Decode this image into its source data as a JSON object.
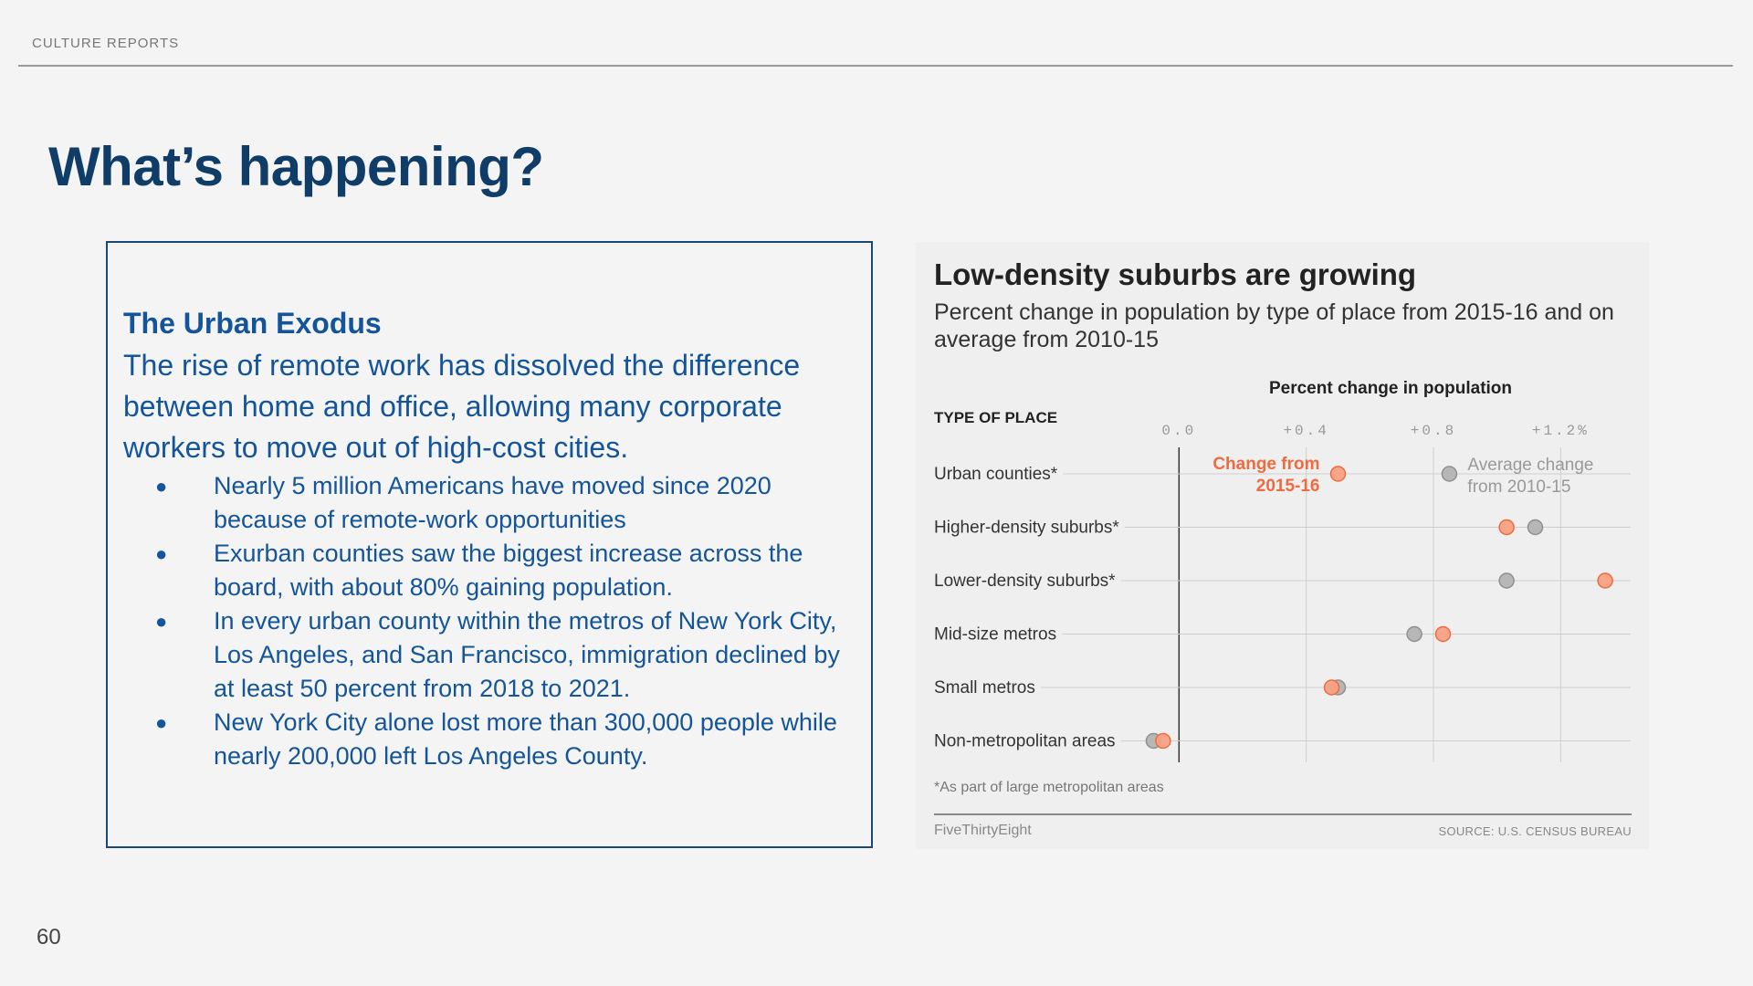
{
  "header": {
    "section_label": "CULTURE REPORTS"
  },
  "slide": {
    "title": "What’s happening?",
    "page_number": "60"
  },
  "text_box": {
    "heading": "The Urban Exodus",
    "lead": "The rise of remote work has dissolved the difference between home and office, allowing many corporate workers to move out of high-cost cities.",
    "bullets": [
      "Nearly 5 million Americans have moved since 2020 because of remote-work opportunities",
      "Exurban counties saw the biggest increase across the board, with about 80% gaining population.",
      "In every urban county within the metros of New York City, Los Angeles, and San Francisco, immigration declined by at least 50 percent from 2018 to 2021.",
      "New York City alone lost more than 300,000 people while nearly 200,000 left Los Angeles County."
    ]
  },
  "chart_data": {
    "type": "scatter",
    "title": "Low-density suburbs are growing",
    "subtitle": "Percent change in population by type of place from 2015-16 and on average from 2010-15",
    "xlabel": "Percent change in population",
    "ylabel": "TYPE OF PLACE",
    "x_ticks": [
      "0.0",
      "+0.4",
      "+0.8",
      "+1.2%"
    ],
    "x_tick_values": [
      0,
      0.4,
      0.8,
      1.2
    ],
    "xlim": [
      -0.11,
      1.42
    ],
    "categories": [
      "Urban counties*",
      "Higher-density suburbs*",
      "Lower-density suburbs*",
      "Mid-size metros",
      "Small metros",
      "Non-metropolitan areas"
    ],
    "series": [
      {
        "name": "Average change from 2010-15",
        "color": "#b7b7b7",
        "stroke": "#8f8f8f",
        "values": [
          0.85,
          1.12,
          1.03,
          0.74,
          0.5,
          -0.08
        ]
      },
      {
        "name": "Change from 2015-16",
        "color": "#f7a184",
        "stroke": "#ef6a3f",
        "values": [
          0.5,
          1.03,
          1.34,
          0.83,
          0.48,
          -0.05
        ]
      }
    ],
    "annotations": {
      "orange_label": "Change from 2015-16",
      "gray_label": "Average change from 2010-15"
    },
    "note": "*As part of large metropolitan areas",
    "credit": "FiveThirtyEight",
    "source": "SOURCE: U.S. CENSUS BUREAU",
    "grid": true
  }
}
